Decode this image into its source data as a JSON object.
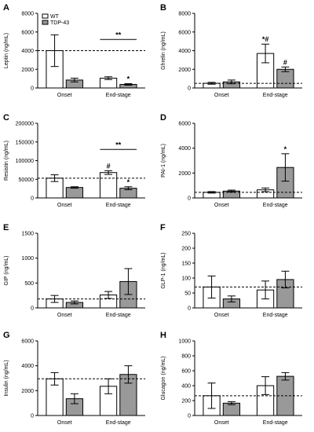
{
  "colors": {
    "wt": "#ffffff",
    "tdp43": "#999999",
    "stroke": "#000000"
  },
  "legend": {
    "wt": "WT",
    "tdp43": "TDP-43"
  },
  "chart_data": [
    {
      "panel": "A",
      "type": "bar",
      "ylabel": "Leptin (ng/mL)",
      "ylim": [
        0,
        8000
      ],
      "yticks": [
        0,
        2000,
        4000,
        6000,
        8000
      ],
      "yticklabels": [
        "0",
        "2000",
        "4000",
        "6000",
        "8000"
      ],
      "categories": [
        "Onset",
        "End-stage"
      ],
      "series": [
        {
          "name": "WT",
          "values": [
            4000,
            1050
          ],
          "errors": [
            1700,
            150
          ]
        },
        {
          "name": "TDP-43",
          "values": [
            850,
            380
          ],
          "errors": [
            200,
            80
          ]
        }
      ],
      "reference": 4000,
      "annotations": [
        {
          "group": 1,
          "bar": 1,
          "text": "*"
        }
      ],
      "brackets": [
        {
          "level": 5200,
          "text": "**"
        }
      ]
    },
    {
      "panel": "B",
      "type": "bar",
      "ylabel": "Ghrelin (ng/mL)",
      "ylim": [
        0,
        8000
      ],
      "yticks": [
        0,
        2000,
        4000,
        6000,
        8000
      ],
      "yticklabels": [
        "0",
        "2000",
        "4000",
        "6000",
        "8000"
      ],
      "categories": [
        "Onset",
        "End-stage"
      ],
      "series": [
        {
          "name": "WT",
          "values": [
            500,
            3700
          ],
          "errors": [
            100,
            1000
          ]
        },
        {
          "name": "TDP-43",
          "values": [
            650,
            2000
          ],
          "errors": [
            200,
            250
          ]
        }
      ],
      "reference": 500,
      "annotations": [
        {
          "group": 1,
          "bar": 0,
          "text": "*#"
        },
        {
          "group": 1,
          "bar": 1,
          "text": "#"
        }
      ],
      "brackets": []
    },
    {
      "panel": "C",
      "type": "bar",
      "ylabel": "Resistin (ng/mL)",
      "ylim": [
        0,
        200000
      ],
      "yticks": [
        0,
        50000,
        100000,
        150000,
        200000
      ],
      "yticklabels": [
        "0",
        "50000",
        "100000",
        "150000",
        "200000"
      ],
      "categories": [
        "Onset",
        "End-stage"
      ],
      "series": [
        {
          "name": "WT",
          "values": [
            53000,
            68000
          ],
          "errors": [
            9000,
            5000
          ]
        },
        {
          "name": "TDP-43",
          "values": [
            28000,
            26000
          ],
          "errors": [
            2000,
            4000
          ]
        }
      ],
      "reference": 53000,
      "annotations": [
        {
          "group": 1,
          "bar": 0,
          "text": "#"
        },
        {
          "group": 1,
          "bar": 1,
          "text": "*"
        }
      ],
      "brackets": [
        {
          "level": 130000,
          "text": "**"
        }
      ]
    },
    {
      "panel": "D",
      "type": "bar",
      "ylabel": "PAI-1 (ng/mL)",
      "ylim": [
        0,
        6000
      ],
      "yticks": [
        0,
        2000,
        4000,
        6000
      ],
      "yticklabels": [
        "0",
        "2000",
        "4000",
        "6000"
      ],
      "categories": [
        "Onset",
        "End-stage"
      ],
      "series": [
        {
          "name": "WT",
          "values": [
            450,
            650
          ],
          "errors": [
            60,
            150
          ]
        },
        {
          "name": "TDP-43",
          "values": [
            550,
            2450
          ],
          "errors": [
            80,
            1100
          ]
        }
      ],
      "reference": 450,
      "annotations": [
        {
          "group": 1,
          "bar": 1,
          "text": "*"
        }
      ],
      "brackets": []
    },
    {
      "panel": "E",
      "type": "bar",
      "ylabel": "GIP (ng/mL)",
      "ylim": [
        0,
        1500
      ],
      "yticks": [
        0,
        500,
        1000,
        1500
      ],
      "yticklabels": [
        "0",
        "500",
        "1000",
        "1500"
      ],
      "categories": [
        "Onset",
        "End-stage"
      ],
      "series": [
        {
          "name": "WT",
          "values": [
            180,
            260
          ],
          "errors": [
            70,
            70
          ]
        },
        {
          "name": "TDP-43",
          "values": [
            110,
            530
          ],
          "errors": [
            30,
            260
          ]
        }
      ],
      "reference": 180,
      "annotations": [],
      "brackets": []
    },
    {
      "panel": "F",
      "type": "bar",
      "ylabel": "GLP-1 (ng/mL)",
      "ylim": [
        0,
        250
      ],
      "yticks": [
        0,
        50,
        100,
        150,
        200,
        250
      ],
      "yticklabels": [
        "0",
        "50",
        "100",
        "150",
        "200",
        "250"
      ],
      "categories": [
        "Onset",
        "End-stage"
      ],
      "series": [
        {
          "name": "WT",
          "values": [
            70,
            60
          ],
          "errors": [
            37,
            30
          ]
        },
        {
          "name": "TDP-43",
          "values": [
            30,
            95
          ],
          "errors": [
            10,
            28
          ]
        }
      ],
      "reference": 70,
      "annotations": [],
      "brackets": []
    },
    {
      "panel": "G",
      "type": "bar",
      "ylabel": "Insulin (ng/mL)",
      "ylim": [
        0,
        6000
      ],
      "yticks": [
        0,
        2000,
        4000,
        6000
      ],
      "yticklabels": [
        "0",
        "2000",
        "4000",
        "6000"
      ],
      "categories": [
        "Onset",
        "End-stage"
      ],
      "series": [
        {
          "name": "WT",
          "values": [
            2950,
            2350
          ],
          "errors": [
            500,
            600
          ]
        },
        {
          "name": "TDP-43",
          "values": [
            1350,
            3300
          ],
          "errors": [
            400,
            700
          ]
        }
      ],
      "reference": 2950,
      "annotations": [],
      "brackets": []
    },
    {
      "panel": "H",
      "type": "bar",
      "ylabel": "Glucagon (ng/mL)",
      "ylim": [
        0,
        1000
      ],
      "yticks": [
        0,
        200,
        400,
        600,
        800,
        1000
      ],
      "yticklabels": [
        "0",
        "200",
        "400",
        "600",
        "800",
        "1000"
      ],
      "categories": [
        "Onset",
        "End-stage"
      ],
      "series": [
        {
          "name": "WT",
          "values": [
            265,
            400
          ],
          "errors": [
            170,
            120
          ]
        },
        {
          "name": "TDP-43",
          "values": [
            165,
            525
          ],
          "errors": [
            20,
            50
          ]
        }
      ],
      "reference": 265,
      "annotations": [],
      "brackets": []
    }
  ]
}
